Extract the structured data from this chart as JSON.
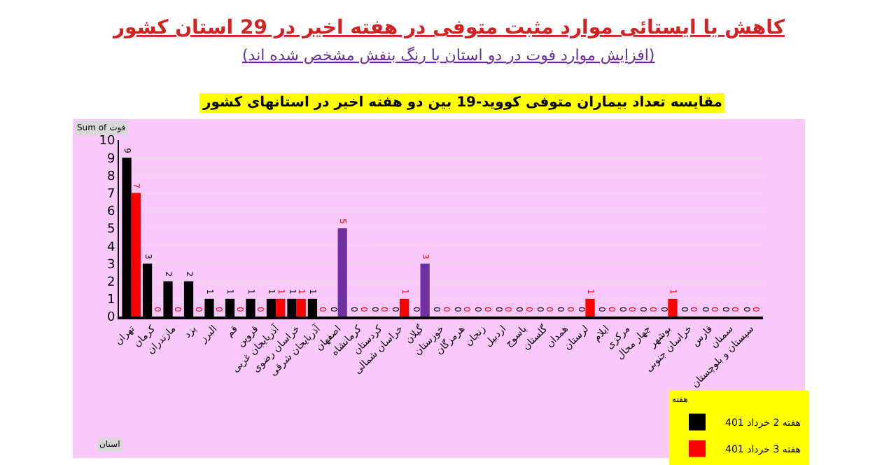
{
  "chart_data": {
    "type": "bar",
    "title": "کاهش یا ایستائی موارد مثبت متوفی در هفته اخیر در 29 استان کشور",
    "subtitle": "(افزایش موارد فوت در دو استان با رنگ بنفش مشخص شده اند)",
    "annotations": [
      "مقایسه تعداد بیماران متوفی کووید-19 بین دو هفته اخیر در استانهای کشور",
      "Sum of فوت",
      "استان"
    ],
    "legend_title": "هفته",
    "categories": [
      "تهران",
      "کرمان",
      "مازندران",
      "یزد",
      "البرز",
      "قم",
      "قزوین",
      "آذربایجان غربی",
      "خراسان رضوی",
      "آذربایجان شرقی",
      "اصفهان",
      "کرمانشاه",
      "کردستان",
      "خراسان شمالی",
      "گیلان",
      "خوزستان",
      "هرمزگان",
      "زنجان",
      "اردبیل",
      "یاسوج",
      "گلستان",
      "همدان",
      "لرستان",
      "ایلام",
      "مرکزی",
      "چهار محال",
      "بوشهر",
      "خراسان جنوبی",
      "فارس",
      "سمنان",
      "سیستان و بلوچستان"
    ],
    "series": [
      {
        "name": "هفته 2 خرداد 401",
        "color": "#000000",
        "values": [
          9,
          3,
          2,
          2,
          1,
          1,
          1,
          1,
          1,
          1,
          0,
          0,
          0,
          0,
          0,
          0,
          0,
          0,
          0,
          0,
          0,
          0,
          0,
          0,
          0,
          0,
          0,
          0,
          0,
          0,
          0
        ]
      },
      {
        "name": "هفته 3 خرداد 401",
        "color": "#ff0000",
        "colors": [
          "#ff0000",
          "#ff0000",
          "#ff0000",
          "#ff0000",
          "#ff0000",
          "#ff0000",
          "#ff0000",
          "#ff0000",
          "#ff0000",
          "#ff0000",
          "#7030a0",
          "#ff0000",
          "#ff0000",
          "#ff0000",
          "#7030a0",
          "#ff0000",
          "#ff0000",
          "#ff0000",
          "#ff0000",
          "#ff0000",
          "#ff0000",
          "#ff0000",
          "#ff0000",
          "#ff0000",
          "#ff0000",
          "#ff0000",
          "#ff0000",
          "#ff0000",
          "#ff0000",
          "#ff0000",
          "#ff0000"
        ],
        "values": [
          7,
          0,
          0,
          0,
          0,
          0,
          0,
          1,
          1,
          0,
          5,
          0,
          0,
          1,
          3,
          0,
          0,
          0,
          0,
          0,
          0,
          0,
          1,
          0,
          0,
          0,
          1,
          0,
          0,
          0,
          0
        ]
      }
    ],
    "ylim": [
      0,
      10
    ],
    "yticks": [
      0,
      1,
      2,
      3,
      4,
      5,
      6,
      7,
      8,
      9,
      10
    ],
    "grid": "y",
    "legend": "bottom right",
    "data_labels": true
  }
}
